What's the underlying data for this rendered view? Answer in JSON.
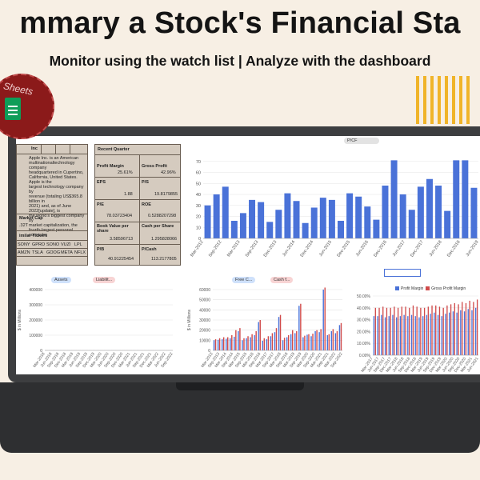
{
  "header": {
    "headline": "mmary a Stock's Financial Sta",
    "subline": "Monitor using the watch list | Analyze with the dashboard"
  },
  "badge": {
    "text": "Sheets",
    "icon": "google-sheets-icon"
  },
  "colors": {
    "accent_stripes": "#f0b429",
    "bar_blue": "#4a72d8",
    "bar_red": "#d04a4a",
    "background": "#f7efe4"
  },
  "company_panel": {
    "title": "Inc",
    "description": [
      "Apple Inc. is an American",
      "multinationaltechnology company",
      "headquartered in Cupertino,",
      "California, United States. Apple is the",
      "largest technology company by",
      "revenue (totaling US$365.8 billion in",
      "2021) and, as of June 2022[update], is",
      "the world's biggest company by",
      "market capitalization, the",
      "fourth-largest personal computer"
    ],
    "market_cap_label": "Market Cap",
    "market_cap_value": ".32T",
    "similar_label": "imilar Tickers",
    "tickers_row1": [
      "SONY",
      "GPRO",
      "SONO",
      "VUZI",
      "LPL"
    ],
    "tickers_row2": [
      "AMZN",
      "TSLA",
      "GOOG",
      "META",
      "NFLX"
    ]
  },
  "quarter_panel": {
    "title": "Recent Quarter",
    "rows": [
      {
        "k1": "Profit Margin",
        "v1": "25.61%",
        "k2": "Gross Profit",
        "v2": "42.96%"
      },
      {
        "k1": "EPS",
        "v1": "1.88",
        "k2": "P/S",
        "v2": "19.8179855"
      },
      {
        "k1": "P/E",
        "v1": "78.03723404",
        "k2": "ROE",
        "v2": "0.5288207298"
      },
      {
        "k1": "Book Value per share",
        "v1": "3.58596713",
        "k2": "Cash per Share",
        "v2": "1.295828066"
      },
      {
        "k1": "P/B",
        "v1": "40.91225454",
        "k2": "P/Cash",
        "v2": "113.2177805"
      }
    ]
  },
  "charts": {
    "pcf_chip": "P/CF",
    "assets_chip": "Assets",
    "liab_chip": "Liabilit...",
    "fcf_chip": "Free C...",
    "cashf_chip": "Cash f...",
    "margin_legend": [
      "Profit Margin",
      "Gross Profit Margin"
    ]
  },
  "chart_data": [
    {
      "type": "bar",
      "series": [
        {
          "name": "P/CF",
          "values": [
            30,
            40,
            47,
            16,
            23,
            35,
            33,
            15,
            26,
            41,
            34,
            14,
            28,
            37,
            35,
            16,
            41,
            38,
            29,
            17,
            48,
            71,
            40,
            26,
            47,
            54,
            48,
            25,
            71,
            71,
            46
          ]
        }
      ],
      "x": [
        "Mar-2012",
        "Jun-2012",
        "Sep-2012",
        "Dec-2012",
        "Mar-2013",
        "Jun-2013",
        "Sep-2013",
        "Dec-2013",
        "Mar-2014",
        "Jun-2014",
        "Sep-2014",
        "Dec-2014",
        "Mar-2015",
        "Jun-2015",
        "Sep-2015",
        "Dec-2015",
        "Mar-2016",
        "Jun-2016",
        "Sep-2016",
        "Dec-2016",
        "Mar-2017",
        "Jun-2017",
        "Sep-2017",
        "Dec-2017",
        "Mar-2018",
        "Jun-2018",
        "Sep-2018",
        "Dec-2018",
        "Mar-2019",
        "Jun-2019",
        "Sep-2019"
      ],
      "x_tick_labels": [
        "Mar-2012",
        "Sep-2012",
        "Mar-2013",
        "Sep-2013",
        "Dec-2013",
        "Jun-2014",
        "Dec-2014",
        "Jun-2015",
        "Dec-2015",
        "Jun-2016",
        "Dec-2016",
        "Jun-2017",
        "Dec-2017",
        "Jun-2018",
        "Dec-2018",
        "Jun-2019"
      ],
      "ylim": [
        0,
        80
      ],
      "y_ticks": [
        0,
        10,
        20,
        30,
        40,
        50,
        60,
        70
      ],
      "grid": true
    },
    {
      "type": "bar",
      "series": [
        {
          "name": "Assets",
          "values": [
            370,
            340,
            350,
            340,
            340,
            345,
            350,
            325,
            340,
            345,
            330,
            345,
            325,
            340,
            330,
            350,
            360,
            340,
            330,
            345,
            320,
            335,
            340,
            355,
            365,
            340,
            350,
            345,
            330,
            370,
            345,
            340,
            325,
            335,
            340
          ]
        },
        {
          "name": "Liabilit...",
          "values": [
            240,
            235,
            245,
            250,
            260,
            265,
            250,
            240,
            255,
            260,
            255,
            260,
            255,
            265,
            250,
            270,
            280,
            270,
            255,
            265,
            260,
            270,
            265,
            275,
            285,
            270,
            280,
            275,
            270,
            290,
            280,
            285,
            270,
            275,
            280
          ]
        }
      ],
      "x_tick_labels": [
        "Mar-2018",
        "Jun-2018",
        "Sep-2018",
        "Dec-2018",
        "Mar-2019",
        "Jun-2019",
        "Sep-2019",
        "Dec-2019",
        "Mar-2020",
        "Jun-2020",
        "Sep-2020",
        "Dec-2020",
        "Mar-2021",
        "Jun-2021",
        "Sep-2021",
        "Dec-2021",
        "Mar-2022",
        "Jun-2022",
        "Sep-2022"
      ],
      "ylabel": "$ in Millions",
      "ylim": [
        0,
        400000
      ],
      "y_ticks": [
        0,
        100000,
        200000,
        300000,
        400000
      ],
      "grid": true
    },
    {
      "type": "bar",
      "series": [
        {
          "name": "Free C...",
          "values": [
            10000,
            10500,
            11000,
            11500,
            12000,
            13500,
            19000,
            10000,
            12000,
            13000,
            15000,
            28000,
            9500,
            11000,
            14000,
            18000,
            33000,
            10000,
            13000,
            16000,
            17000,
            44000,
            13000,
            15500,
            14000,
            19000,
            18000,
            60000,
            15000,
            19000,
            17000,
            25000
          ]
        },
        {
          "name": "Cash f...",
          "values": [
            11000,
            12000,
            13000,
            13000,
            15000,
            20000,
            22000,
            12000,
            14000,
            16000,
            19000,
            30000,
            12000,
            14000,
            17000,
            22000,
            35000,
            12500,
            15000,
            20000,
            19000,
            46000,
            14500,
            16000,
            16500,
            20000,
            21000,
            62000,
            16000,
            21000,
            19000,
            27000
          ]
        }
      ],
      "x_tick_labels": [
        "Mar-2013",
        "Sep-2013",
        "Mar-2014",
        "Sep-2014",
        "Mar-2015",
        "Sep-2015",
        "Mar-2016",
        "Sep-2016",
        "Mar-2017",
        "Sep-2017",
        "Mar-2018",
        "Sep-2018",
        "Mar-2019",
        "Sep-2019",
        "Mar-2020",
        "Sep-2020",
        "Mar-2021",
        "Sep-2021",
        "Mar-2022",
        "Sep-2022"
      ],
      "ylabel": "$ in Millions",
      "ylim": [
        0,
        60000
      ],
      "y_ticks": [
        0,
        10000,
        20000,
        30000,
        40000,
        50000,
        60000
      ],
      "grid": true
    },
    {
      "type": "bar",
      "series": [
        {
          "name": "Profit Margin",
          "values": [
            0.33,
            0.33,
            0.34,
            0.32,
            0.33,
            0.34,
            0.32,
            0.33,
            0.34,
            0.33,
            0.34,
            0.33,
            0.32,
            0.33,
            0.34,
            0.35,
            0.36,
            0.34,
            0.33,
            0.35,
            0.36,
            0.37,
            0.36,
            0.38,
            0.37,
            0.39,
            0.38,
            0.4
          ]
        },
        {
          "name": "Gross Profit Margin",
          "values": [
            0.4,
            0.4,
            0.41,
            0.4,
            0.4,
            0.41,
            0.4,
            0.41,
            0.41,
            0.4,
            0.42,
            0.41,
            0.4,
            0.4,
            0.41,
            0.42,
            0.42,
            0.41,
            0.4,
            0.42,
            0.43,
            0.44,
            0.43,
            0.45,
            0.44,
            0.46,
            0.45,
            0.47
          ]
        }
      ],
      "x_tick_labels": [
        "Mar-2017",
        "Jun-2017",
        "Sep-2017",
        "Dec-2017",
        "Mar-2018",
        "Jun-2018",
        "Sep-2018",
        "Dec-2018",
        "Mar-2019",
        "Jun-2019",
        "Sep-2019",
        "Dec-2019",
        "Mar-2020",
        "Jun-2020",
        "Sep-2020",
        "Dec-2020",
        "Mar-2021",
        "Jun-2021"
      ],
      "ylim": [
        0,
        0.5
      ],
      "y_tick_labels": [
        "0.00%",
        "10.00%",
        "20.00%",
        "30.00%",
        "40.00%",
        "50.00%"
      ],
      "grid": true
    }
  ]
}
